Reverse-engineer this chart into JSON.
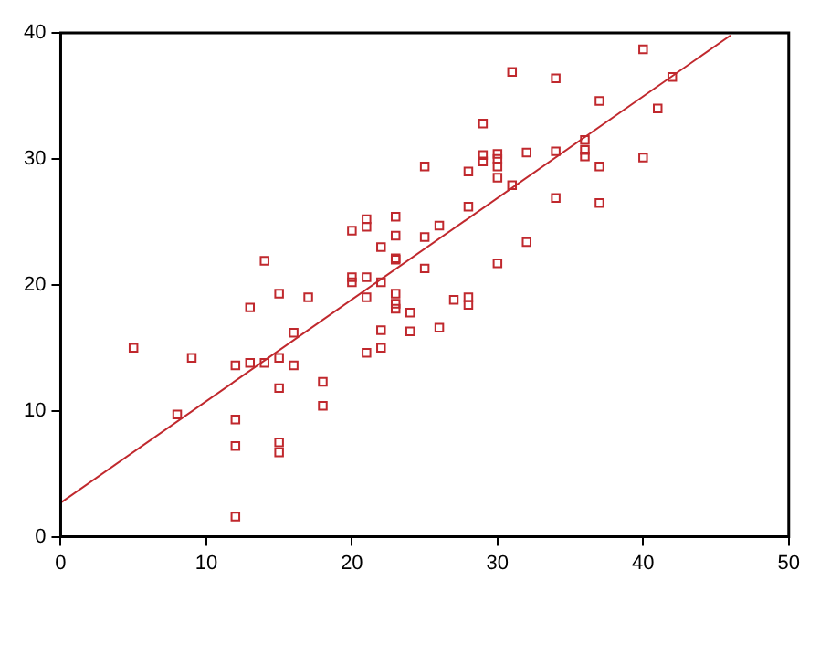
{
  "chart_data": {
    "type": "scatter",
    "marker": "square",
    "grid": false,
    "legend": false,
    "xlim": [
      0,
      50
    ],
    "xticks": [
      0,
      10,
      20,
      30,
      40,
      50
    ],
    "ylim": [
      0,
      40
    ],
    "yticks": [
      0,
      10,
      20,
      30,
      40
    ],
    "series": [
      {
        "color": "#c0282d",
        "x": [
          5,
          8,
          9,
          12,
          12,
          12,
          12,
          13,
          13,
          14,
          14,
          15,
          15,
          15,
          15,
          15,
          16,
          16,
          17,
          18,
          18,
          20,
          20,
          20,
          21,
          21,
          21,
          21,
          21,
          22,
          22,
          22,
          22,
          23,
          23,
          23,
          23,
          23,
          23,
          23,
          24,
          24,
          25,
          25,
          25,
          26,
          26,
          27,
          28,
          28,
          28,
          28,
          29,
          29,
          29,
          30,
          30,
          30,
          30,
          30,
          31,
          31,
          32,
          32,
          34,
          34,
          34,
          36,
          36,
          36,
          37,
          37,
          37,
          40,
          40,
          41,
          42
        ],
        "values": [
          15,
          9.7,
          14.2,
          13.6,
          9.3,
          7.2,
          1.6,
          13.8,
          18.2,
          13.8,
          21.9,
          14.2,
          11.8,
          7.5,
          6.7,
          19.3,
          16.2,
          13.6,
          19,
          12.3,
          10.4,
          20.2,
          20.6,
          24.3,
          25.2,
          24.6,
          20.6,
          19,
          14.6,
          23,
          20.2,
          16.4,
          15,
          25.4,
          23.9,
          22.1,
          22,
          19.3,
          18.5,
          18.1,
          17.8,
          16.3,
          29.4,
          23.8,
          21.3,
          24.7,
          16.6,
          18.8,
          26.2,
          29,
          19,
          18.4,
          32.8,
          30.3,
          29.8,
          30.4,
          30,
          29.4,
          28.5,
          21.7,
          36.9,
          27.9,
          30.5,
          23.4,
          36.4,
          30.6,
          26.9,
          31.5,
          30.7,
          30.2,
          34.6,
          29.4,
          26.5,
          38.7,
          30.1,
          34,
          36.5
        ]
      },
      {
        "type": "line",
        "color": "#c0282d",
        "marker": "none",
        "x": [
          0,
          46
        ],
        "values": [
          2.7,
          39.8
        ]
      }
    ]
  }
}
